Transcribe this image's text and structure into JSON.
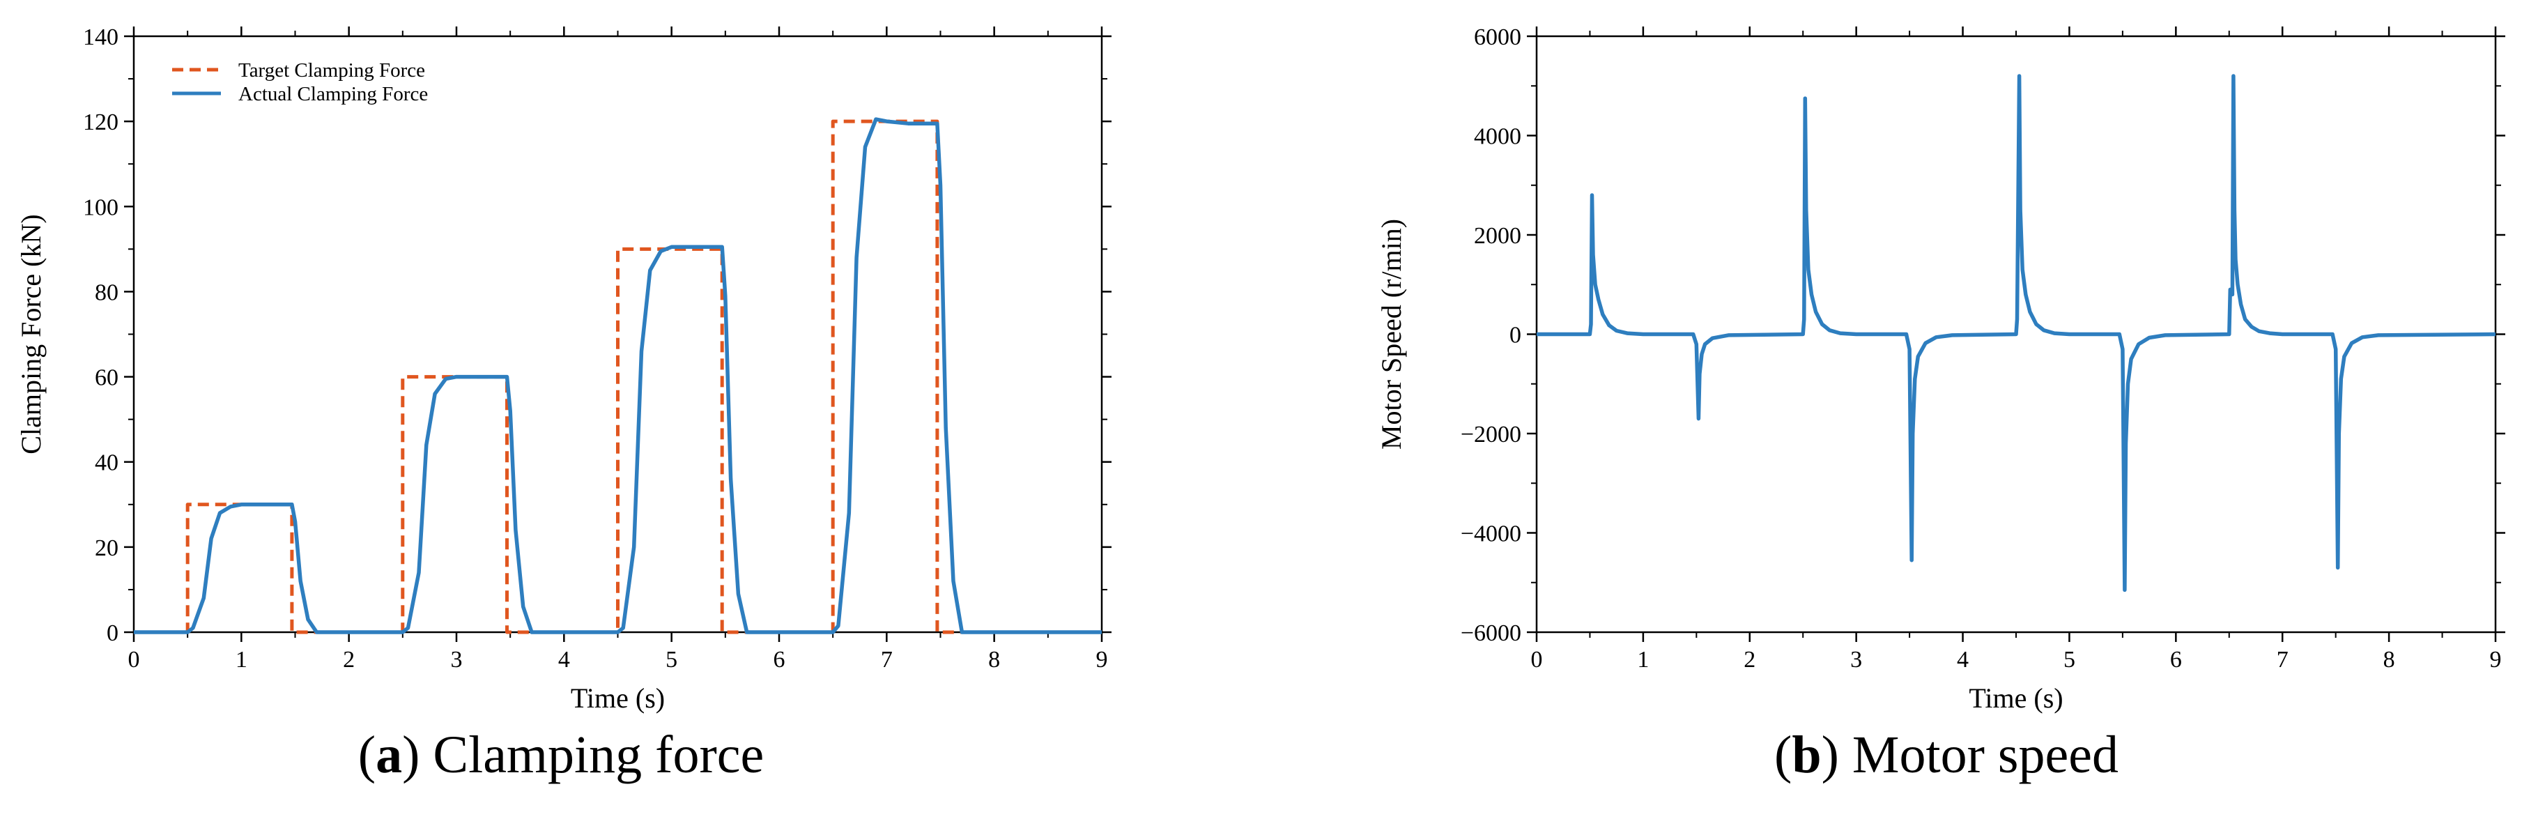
{
  "captions": [
    {
      "letter": "a",
      "text": "Clamping force"
    },
    {
      "letter": "b",
      "text": "Motor speed"
    }
  ],
  "chart_data": [
    {
      "type": "line",
      "title": "",
      "xlabel": "Time (s)",
      "ylabel": "Clamping Force (kN)",
      "xlim": [
        0,
        9
      ],
      "ylim": [
        0,
        140
      ],
      "xticks": [
        0,
        1,
        2,
        3,
        4,
        5,
        6,
        7,
        8,
        9
      ],
      "yticks": [
        0,
        20,
        40,
        60,
        80,
        100,
        120,
        140
      ],
      "grid": false,
      "legend": "top-left",
      "series": [
        {
          "name": "Target Clamping Force",
          "color": "#e0561f",
          "style": "dashed",
          "x": [
            0,
            0.5,
            0.5,
            1.47,
            1.47,
            2.5,
            2.5,
            3.47,
            3.47,
            4.5,
            4.5,
            5.47,
            5.47,
            6.5,
            6.5,
            7.47,
            7.47,
            9
          ],
          "y": [
            0,
            0,
            30,
            30,
            0,
            0,
            60,
            60,
            0,
            0,
            90,
            90,
            0,
            0,
            120,
            120,
            0,
            0
          ]
        },
        {
          "name": "Actual Clamping Force",
          "color": "#2e7ebf",
          "style": "solid",
          "x": [
            0,
            0.5,
            0.55,
            0.65,
            0.72,
            0.8,
            0.9,
            1.0,
            1.2,
            1.47,
            1.5,
            1.55,
            1.62,
            1.7,
            2.5,
            2.55,
            2.65,
            2.72,
            2.8,
            2.9,
            3.0,
            3.2,
            3.47,
            3.5,
            3.55,
            3.62,
            3.7,
            4.5,
            4.55,
            4.65,
            4.72,
            4.8,
            4.9,
            5.0,
            5.2,
            5.47,
            5.5,
            5.55,
            5.62,
            5.7,
            6.5,
            6.55,
            6.65,
            6.72,
            6.8,
            6.9,
            7.0,
            7.2,
            7.47,
            7.5,
            7.55,
            7.62,
            7.7,
            9
          ],
          "y": [
            0,
            0,
            1,
            8,
            22,
            28,
            29.5,
            30,
            30,
            30,
            26,
            12,
            3,
            0,
            0,
            1,
            14,
            44,
            56,
            59.5,
            60,
            60,
            60,
            52,
            24,
            6,
            0,
            0,
            1,
            20,
            66,
            85,
            89.5,
            90.5,
            90.5,
            90.5,
            79,
            36,
            9,
            0,
            0,
            1.5,
            28,
            88,
            114,
            120.5,
            120,
            119.5,
            119.5,
            105,
            48,
            12,
            0,
            0
          ]
        }
      ]
    },
    {
      "type": "line",
      "title": "",
      "xlabel": "Time (s)",
      "ylabel": "Motor Speed (r/min)",
      "xlim": [
        0,
        9
      ],
      "ylim": [
        -6000,
        6000
      ],
      "xticks": [
        0,
        1,
        2,
        3,
        4,
        5,
        6,
        7,
        8,
        9
      ],
      "yticks": [
        -6000,
        -4000,
        -2000,
        0,
        2000,
        4000,
        6000
      ],
      "grid": false,
      "series": [
        {
          "color": "#2e7ebf",
          "style": "solid",
          "x": [
            0,
            0.5,
            0.51,
            0.52,
            0.53,
            0.55,
            0.58,
            0.62,
            0.68,
            0.75,
            0.85,
            1.0,
            1.47,
            1.5,
            1.52,
            1.53,
            1.55,
            1.58,
            1.65,
            1.8,
            2.5,
            2.51,
            2.52,
            2.53,
            2.55,
            2.58,
            2.62,
            2.68,
            2.75,
            2.85,
            3.0,
            3.47,
            3.5,
            3.52,
            3.53,
            3.55,
            3.58,
            3.65,
            3.75,
            3.9,
            4.5,
            4.51,
            4.53,
            4.54,
            4.56,
            4.59,
            4.63,
            4.69,
            4.76,
            4.86,
            5.0,
            5.47,
            5.5,
            5.52,
            5.53,
            5.55,
            5.58,
            5.65,
            5.75,
            5.9,
            6.5,
            6.51,
            6.53,
            6.54,
            6.55,
            6.56,
            6.58,
            6.61,
            6.65,
            6.71,
            6.78,
            6.88,
            7.0,
            7.47,
            7.5,
            7.52,
            7.53,
            7.55,
            7.58,
            7.65,
            7.75,
            7.9,
            9
          ],
          "y": [
            0,
            0,
            200,
            2800,
            1600,
            1000,
            700,
            400,
            180,
            70,
            20,
            0,
            0,
            -200,
            -1700,
            -800,
            -400,
            -200,
            -80,
            -20,
            0,
            300,
            4750,
            2500,
            1300,
            800,
            450,
            200,
            80,
            20,
            0,
            0,
            -300,
            -4550,
            -2000,
            -900,
            -450,
            -180,
            -60,
            -20,
            0,
            300,
            5200,
            2500,
            1300,
            800,
            450,
            200,
            80,
            20,
            0,
            0,
            -300,
            -5150,
            -2200,
            -1000,
            -500,
            -200,
            -70,
            -20,
            0,
            900,
            800,
            5200,
            2500,
            1500,
            1000,
            600,
            300,
            150,
            60,
            20,
            0,
            0,
            -300,
            -4700,
            -2000,
            -900,
            -450,
            -180,
            -60,
            -20,
            0
          ]
        }
      ]
    }
  ]
}
